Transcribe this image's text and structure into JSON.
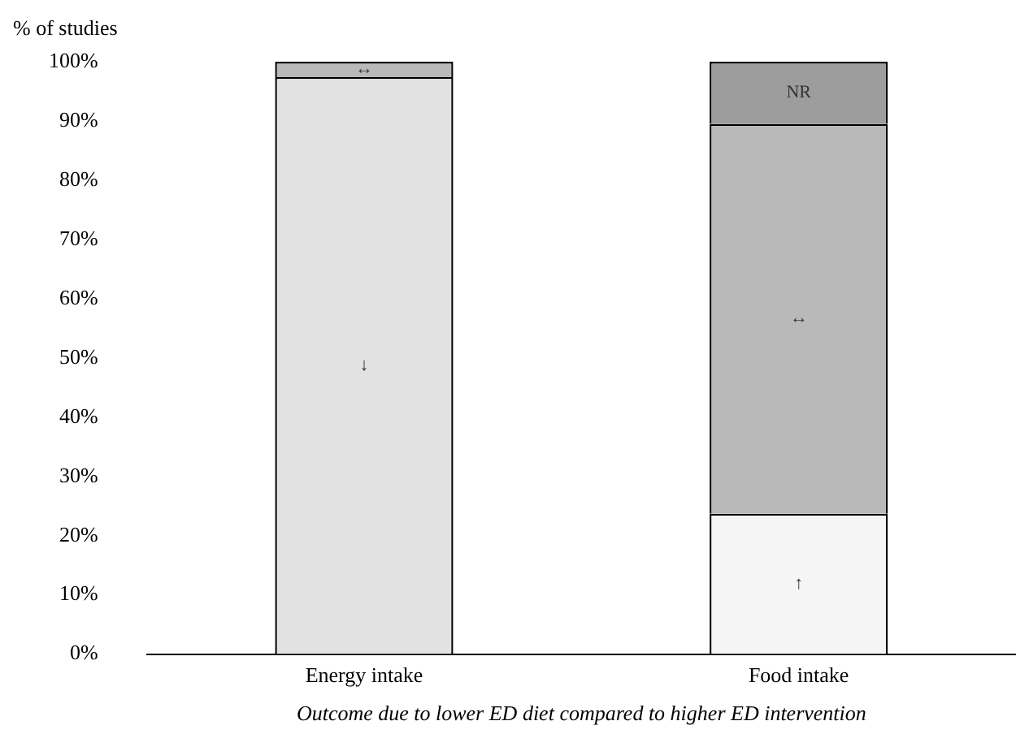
{
  "chart_data": {
    "type": "bar",
    "stacked": true,
    "ylabel": "% of studies",
    "xlabel": "Outcome due to lower ED diet compared to higher ED intervention",
    "categories": [
      "Energy intake",
      "Food intake"
    ],
    "series": [
      {
        "name": "↓",
        "color": "#e2e2e2",
        "values": [
          97.4,
          null
        ]
      },
      {
        "name": "↑",
        "color": "#f4f5f4",
        "values": [
          null,
          23.7
        ]
      },
      {
        "name": "↔",
        "color": "#b9b9ba",
        "values": [
          2.6,
          65.8
        ]
      },
      {
        "name": "NR",
        "color": "#9d9d9d",
        "values": [
          null,
          10.5
        ]
      }
    ],
    "ylim": [
      0,
      100
    ],
    "yticks": [
      {
        "value": 0,
        "label": "0%"
      },
      {
        "value": 10,
        "label": "10%"
      },
      {
        "value": 20,
        "label": "20%"
      },
      {
        "value": 30,
        "label": "30%"
      },
      {
        "value": 40,
        "label": "40%"
      },
      {
        "value": 50,
        "label": "50%"
      },
      {
        "value": 60,
        "label": "60%"
      },
      {
        "value": 70,
        "label": "70%"
      },
      {
        "value": 80,
        "label": "80%"
      },
      {
        "value": 90,
        "label": "90%"
      },
      {
        "value": 100,
        "label": "100%"
      }
    ],
    "grid": false,
    "legend": false
  }
}
